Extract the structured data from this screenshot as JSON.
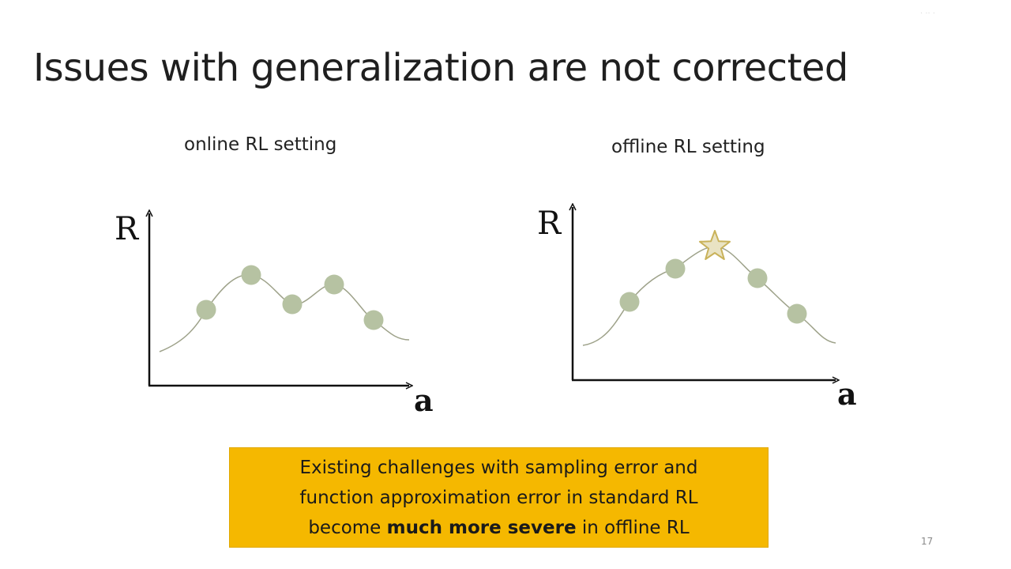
{
  "slide": {
    "title": "Issues with generalization are not corrected",
    "page_number": "17",
    "watermark": "· ·· ·"
  },
  "panels": [
    {
      "label": "online RL setting",
      "y_axis_label": "R",
      "x_axis_label": "a",
      "point_count": 5,
      "star": false
    },
    {
      "label": "offline RL setting",
      "y_axis_label": "R",
      "x_axis_label": "a",
      "point_count": 4,
      "star": true
    }
  ],
  "callout": {
    "line1": "Existing challenges with sampling error and",
    "line2": "function approximation error in standard RL",
    "line3_before": "become ",
    "line3_bold": "much more severe",
    "line3_after": " in offline RL"
  },
  "colors": {
    "point_fill": "#b6c2a2",
    "curve": "#9ea28a",
    "axis": "#111111",
    "star_fill": "#e9e3c3",
    "star_stroke": "#c9b25a",
    "callout_bg": "#f5b800"
  },
  "icons": {
    "star": "star-icon"
  }
}
